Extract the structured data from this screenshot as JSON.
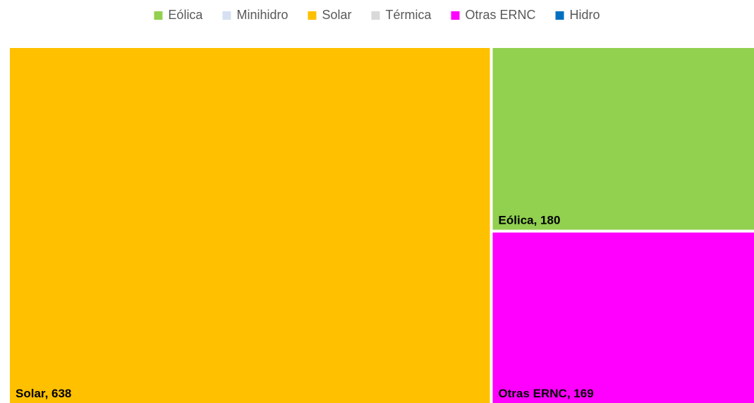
{
  "chart_data": {
    "type": "treemap",
    "categories": [
      "Eólica",
      "Minihidro",
      "Solar",
      "Térmica",
      "Otras ERNC",
      "Hidro"
    ],
    "values": [
      180,
      0,
      638,
      0,
      169,
      0
    ],
    "value_labels": [
      "Eólica, 180",
      null,
      "Solar, 638",
      null,
      "Otras ERNC, 169",
      null
    ],
    "colors": [
      "#92d050",
      "#d6e0f2",
      "#ffc000",
      "#d9d9d9",
      "#ff00ff",
      "#0070c0"
    ],
    "legend": "top"
  }
}
